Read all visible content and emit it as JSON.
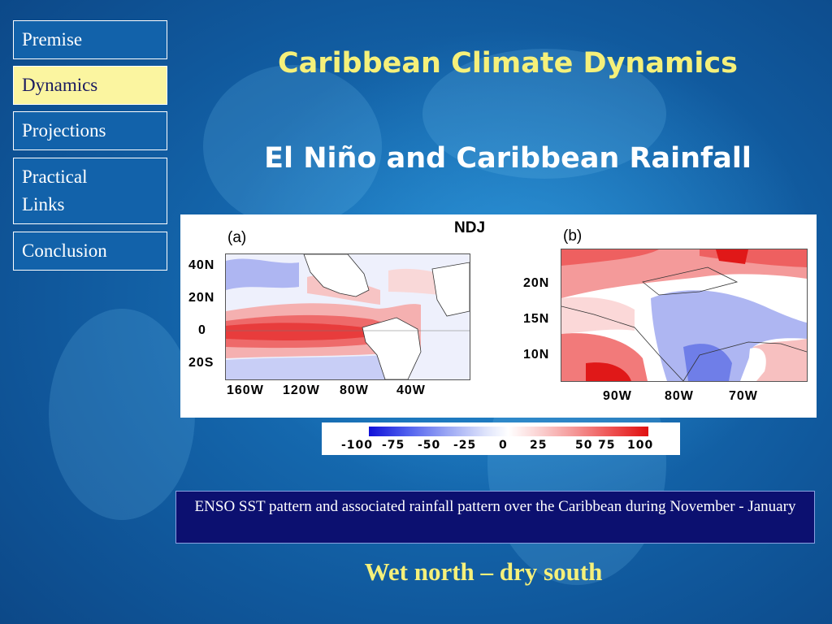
{
  "nav": {
    "items": [
      {
        "label": "Premise"
      },
      {
        "label": "Dynamics"
      },
      {
        "label": "Projections"
      },
      {
        "label": "Practical Links"
      },
      {
        "label": "Conclusion"
      }
    ]
  },
  "main_title": "Caribbean Climate Dynamics",
  "subtitle": "El Niño and Caribbean Rainfall",
  "figure": {
    "season_label": "NDJ",
    "panel_a": {
      "label": "(a)",
      "lat_labels": [
        "40N",
        "20N",
        "0",
        "20S"
      ],
      "lon_labels": [
        "160W",
        "120W",
        "80W",
        "40W"
      ]
    },
    "panel_b": {
      "label": "(b)",
      "lat_labels": [
        "20N",
        "15N",
        "10N"
      ],
      "lon_labels": [
        "90W",
        "80W",
        "70W"
      ]
    },
    "colorbar": {
      "ticks": [
        "-100",
        "-75",
        "-50",
        "-25",
        "0",
        "25",
        "50",
        "75",
        "100"
      ],
      "colors": [
        "#1010d8",
        "#ffffff",
        "#e01010"
      ]
    }
  },
  "caption": "ENSO SST pattern and associated rainfall pattern over the Caribbean during November - January",
  "tagline": "Wet north – dry south"
}
